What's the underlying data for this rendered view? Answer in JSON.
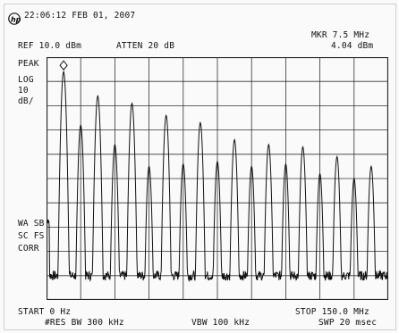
{
  "header": {
    "timestamp": "22:06:12 FEB 01, 2007",
    "ref_level": "REF 10.0 dBm",
    "atten": "ATTEN 20 dB",
    "marker_freq": "MKR 7.5 MHz",
    "marker_level": "4.04 dBm"
  },
  "left_panel": {
    "detector": "PEAK",
    "scale_type": "LOG",
    "scale_value": "10",
    "scale_unit": "dB/",
    "trace_status_1": "WA SB",
    "trace_status_2": "SC FS",
    "trace_status_3": "CORR"
  },
  "footer": {
    "start": "START 0 Hz",
    "stop": "STOP 150.0 MHz",
    "rbw": "#RES BW 300 kHz",
    "vbw": "VBW 100 kHz",
    "sweep": "SWP 20 msec"
  },
  "logo_icon": "hp-logo-icon",
  "chart_data": {
    "type": "line",
    "x_unit": "MHz",
    "xlim": [
      0,
      150
    ],
    "ylim": [
      -90,
      10
    ],
    "grid": true,
    "peaks_x": [
      7.5,
      15,
      22.5,
      30,
      37.5,
      45,
      52.5,
      60,
      67.5,
      75,
      82.5,
      90,
      97.5,
      105,
      112.5,
      120,
      127.5,
      135,
      142.5
    ],
    "peaks_y": [
      4,
      -18,
      -6,
      -26,
      -9,
      -35,
      -14,
      -34,
      -17,
      -33,
      -24,
      -35,
      -26,
      -34,
      -27,
      -38,
      -31,
      -40,
      -35
    ],
    "noise_floor": -80,
    "marker": {
      "x": 7.5,
      "y": 4.04
    }
  }
}
